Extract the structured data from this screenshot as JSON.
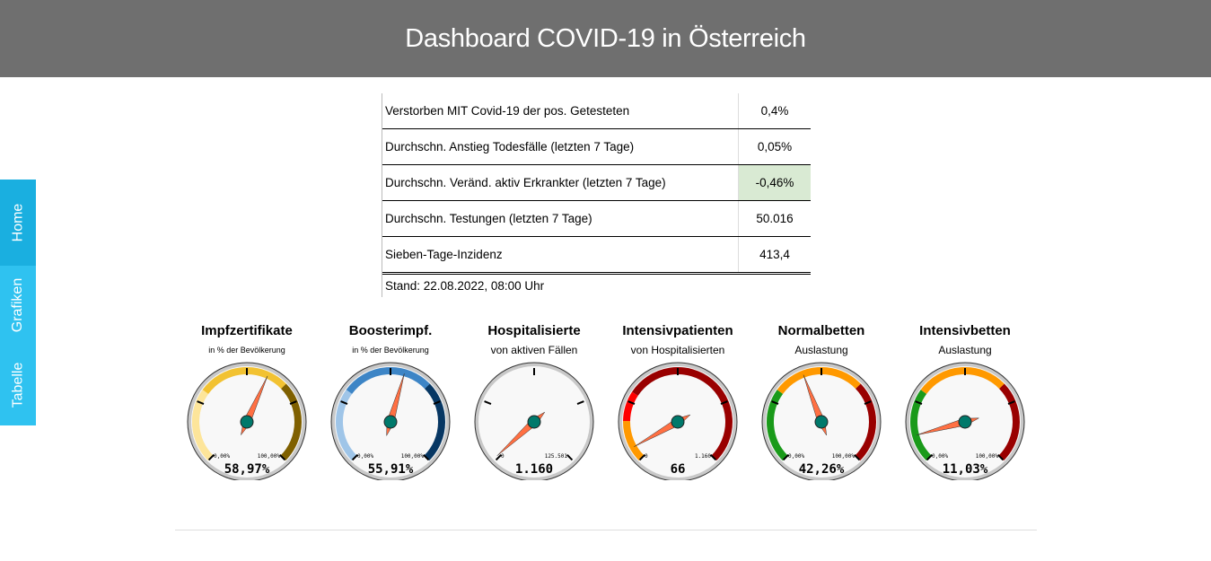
{
  "header": {
    "title": "Dashboard COVID-19 in Österreich"
  },
  "sidebar": {
    "items": [
      {
        "label": "Home",
        "color": "#1aafe0"
      },
      {
        "label": "Grafiken",
        "color": "#2fc2f0"
      },
      {
        "label": "Tabelle",
        "color": "#2fc2f0"
      }
    ]
  },
  "table": {
    "rows": [
      {
        "label": "Verstorben MIT Covid-19 der pos. Getesteten",
        "value": "0,4%"
      },
      {
        "label": "Durchschn. Anstieg Todesfälle (letzten 7 Tage)",
        "value": "0,05%"
      },
      {
        "label": "Durchschn. Veränd. aktiv Erkrankter (letzten 7 Tage)",
        "value": "-0,46%",
        "highlight": "#d9ead3"
      },
      {
        "label": "Durchschn. Testungen (letzten 7 Tage)",
        "value": "50.016"
      },
      {
        "label": "Sieben-Tage-Inzidenz",
        "value": "413,4"
      }
    ],
    "stand": "Stand: 22.08.2022, 08:00 Uhr"
  },
  "gauges": [
    {
      "title": "Impfzertifikate",
      "subtitle": "in % der Bevölkerung",
      "min_label": "0,00%",
      "max_label": "100,00%",
      "value_label": "58,97%",
      "fraction": 0.5897,
      "bands": [
        [
          0,
          0.3,
          "#fde59a"
        ],
        [
          0,
          0.3,
          "#fde59a"
        ],
        [
          0.3,
          0.67,
          "#f2c232"
        ],
        [
          0.67,
          1,
          "#7f6000"
        ]
      ]
    },
    {
      "title": "Boosterimpf.",
      "subtitle": "in % der Bevölkerung",
      "min_label": "0,00%",
      "max_label": "100,00%",
      "value_label": "55,91%",
      "fraction": 0.5591,
      "bands": [
        [
          0,
          0.3,
          "#9fc5e8"
        ],
        [
          0.3,
          0.67,
          "#3d85c6"
        ],
        [
          0.67,
          1,
          "#073763"
        ]
      ]
    },
    {
      "title": "Hospitalisierte",
      "subtitle": "von aktiven Fällen",
      "min_label": "0",
      "max_label": "125.501",
      "value_label": "1.160",
      "fraction": 0.0092,
      "bands": []
    },
    {
      "title": "Intensivpatienten",
      "subtitle": "von Hospitalisierten",
      "min_label": "0",
      "max_label": "1.160",
      "value_label": "66",
      "fraction": 0.0569,
      "bands": [
        [
          0,
          0.17,
          "#ff9900"
        ],
        [
          0,
          0,
          "#ff9900"
        ],
        [
          0.17,
          0.29,
          "#ff0000"
        ],
        [
          0.29,
          1,
          "#990000"
        ]
      ]
    },
    {
      "title": "Normalbetten",
      "subtitle": "Auslastung",
      "min_label": "0,00%",
      "max_label": "100,00%",
      "value_label": "42,26%",
      "fraction": 0.4226,
      "bands": [
        [
          0,
          0.3,
          "#1a9a1a"
        ],
        [
          0.3,
          0.67,
          "#ff9900"
        ],
        [
          0.67,
          1,
          "#990000"
        ]
      ]
    },
    {
      "title": "Intensivbetten",
      "subtitle": "Auslastung",
      "min_label": "0,00%",
      "max_label": "100,00%",
      "value_label": "11,03%",
      "fraction": 0.1103,
      "bands": [
        [
          0,
          0.3,
          "#1a9a1a"
        ],
        [
          0.3,
          0.67,
          "#ff9900"
        ],
        [
          0.67,
          1,
          "#990000"
        ]
      ]
    }
  ],
  "colors": {
    "needle": "#ff7043",
    "hub": "#00796b",
    "face": "#f8f8f8"
  }
}
